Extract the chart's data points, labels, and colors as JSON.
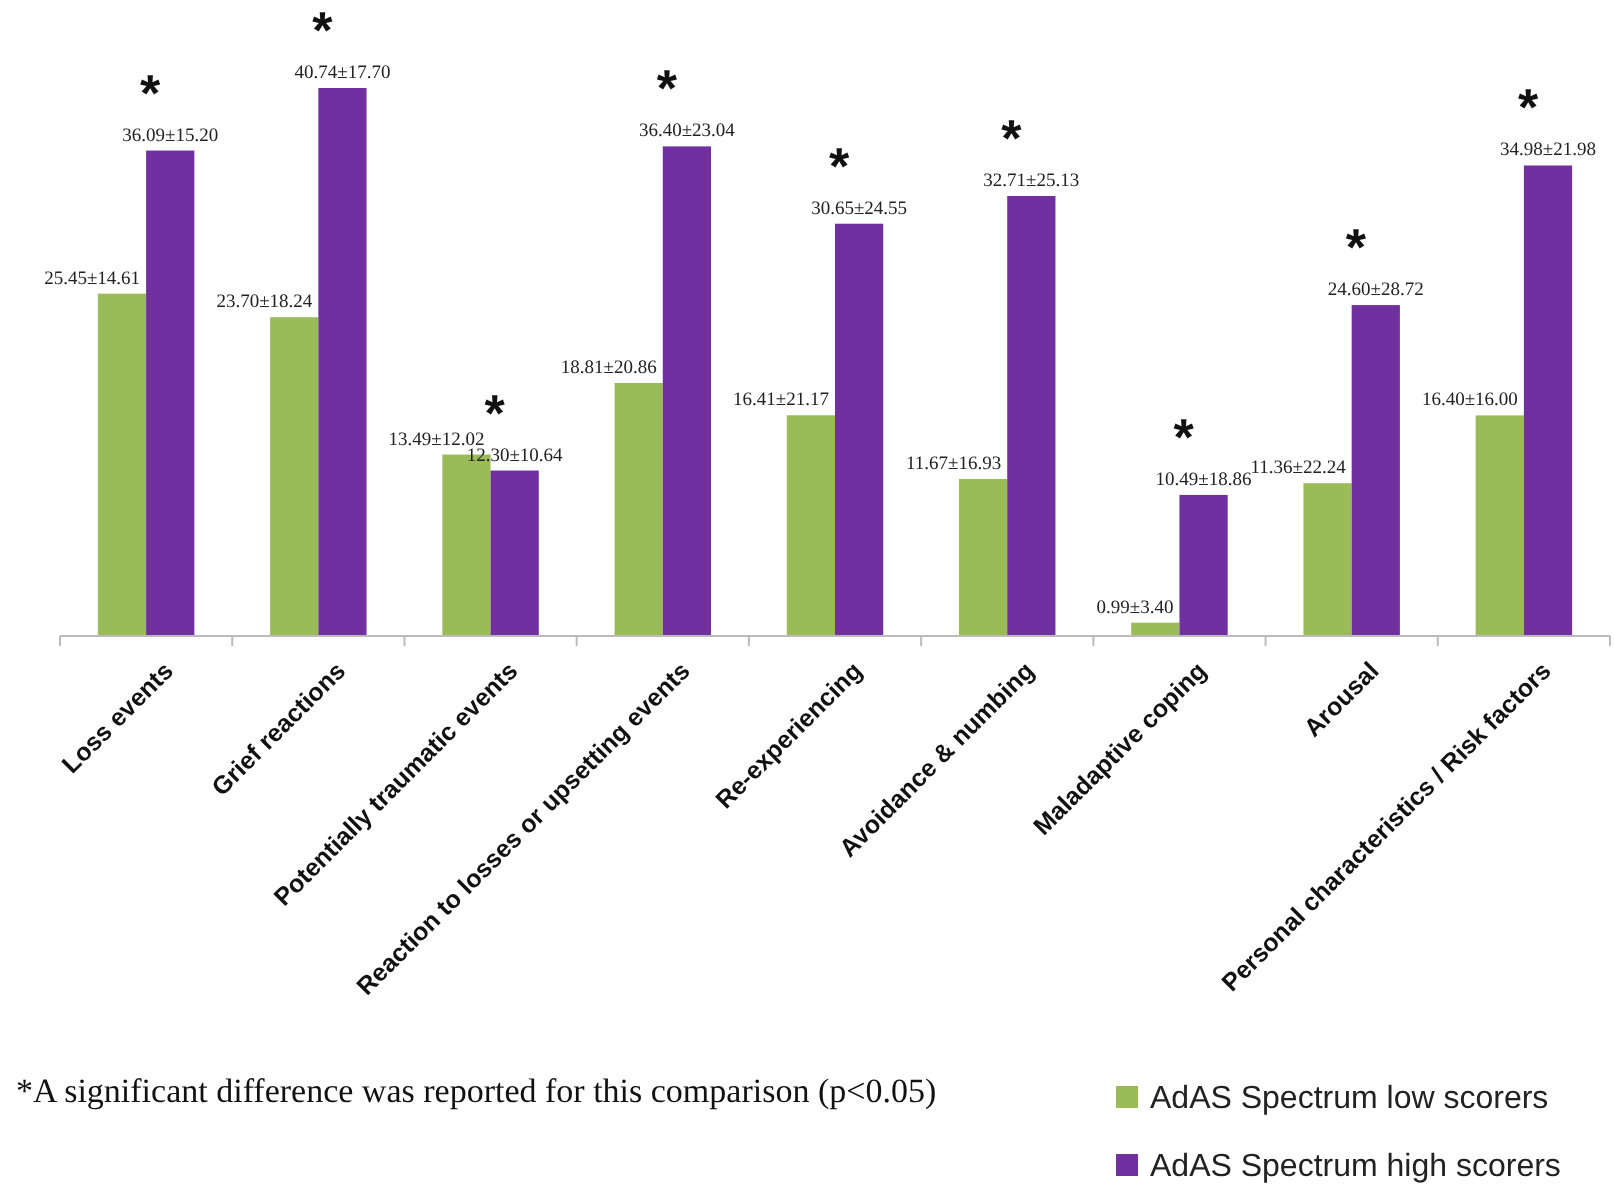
{
  "chart_data": {
    "type": "bar",
    "categories": [
      "Loss events",
      "Grief reactions",
      "Potentially traumatic events",
      "Reaction to losses or upsetting events",
      "Re-experiencing",
      "Avoidance & numbing",
      "Maladaptive coping",
      "Arousal",
      "Personal characteristics / Risk factors"
    ],
    "series": [
      {
        "name": "AdAS Spectrum low scorers",
        "color": "#9bbb59",
        "values": [
          25.45,
          23.7,
          13.49,
          18.81,
          16.41,
          11.67,
          0.99,
          11.36,
          16.4
        ],
        "value_labels": [
          "25.45±14.61",
          "23.70±18.24",
          "13.49±12.02",
          "18.81±20.86",
          "16.41±21.17",
          "11.67±16.93",
          "0.99±3.40",
          "11.36±22.24",
          "16.40±16.00"
        ]
      },
      {
        "name": "AdAS Spectrum high scorers",
        "color": "#7030a0",
        "values": [
          36.09,
          40.74,
          12.3,
          36.4,
          30.65,
          32.71,
          10.49,
          24.6,
          34.98
        ],
        "value_labels": [
          "36.09±15.20",
          "40.74±17.70",
          "12.30±10.64",
          "36.40±23.04",
          "30.65±24.55",
          "32.71±25.13",
          "10.49±18.86",
          "24.60±28.72",
          "34.98±21.98"
        ]
      }
    ],
    "annotations": [
      {
        "text": "*",
        "x": "Loss events",
        "y": 36.09
      },
      {
        "text": "*",
        "x": "Grief reactions",
        "y": 40.74
      },
      {
        "text": "*",
        "x": "Potentially traumatic events",
        "y": 12.3
      },
      {
        "text": "*",
        "x": "Reaction to losses or upsetting events",
        "y": 36.4
      },
      {
        "text": "*",
        "x": "Re-experiencing",
        "y": 30.65
      },
      {
        "text": "*",
        "x": "Avoidance & numbing",
        "y": 32.71
      },
      {
        "text": "*",
        "x": "Maladaptive coping",
        "y": 10.49
      },
      {
        "text": "*",
        "x": "Arousal",
        "y": 24.6
      },
      {
        "text": "*",
        "x": "Personal characteristics / Risk factors",
        "y": 34.98
      },
      "*A significant difference was reported for this comparison (p<0.05)"
    ],
    "legend": "bottom right"
  }
}
